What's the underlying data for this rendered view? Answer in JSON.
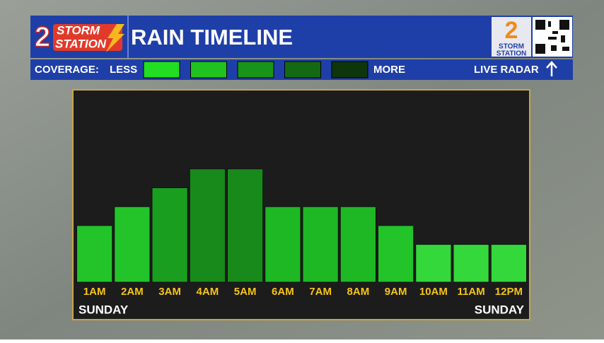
{
  "header": {
    "logo_number": "2",
    "logo_top": "STORM",
    "logo_bottom": "STATION",
    "title": "RAIN TIMELINE",
    "badge_number": "2",
    "badge_top": "STORM",
    "badge_bottom": "STATION"
  },
  "legend": {
    "label": "COVERAGE:",
    "less": "LESS",
    "more": "MORE",
    "colors": [
      "#22dd22",
      "#1fc21f",
      "#189418",
      "#136a13",
      "#0d360d"
    ],
    "link": "LIVE RADAR"
  },
  "chart_data": {
    "type": "bar",
    "categories": [
      "1AM",
      "2AM",
      "3AM",
      "4AM",
      "5AM",
      "6AM",
      "7AM",
      "8AM",
      "9AM",
      "10AM",
      "11AM",
      "12PM"
    ],
    "values": [
      3,
      4,
      5,
      6,
      6,
      4,
      4,
      4,
      3,
      2,
      2,
      2
    ],
    "colors": [
      "#22c42a",
      "#22c42a",
      "#1a9e20",
      "#178a1b",
      "#178a1b",
      "#1eb824",
      "#1eb824",
      "#1eb824",
      "#22c42a",
      "#34d83b",
      "#34d83b",
      "#34d83b"
    ],
    "ylim": [
      0,
      10
    ],
    "day_labels": [
      "SUNDAY",
      "SUNDAY"
    ]
  }
}
